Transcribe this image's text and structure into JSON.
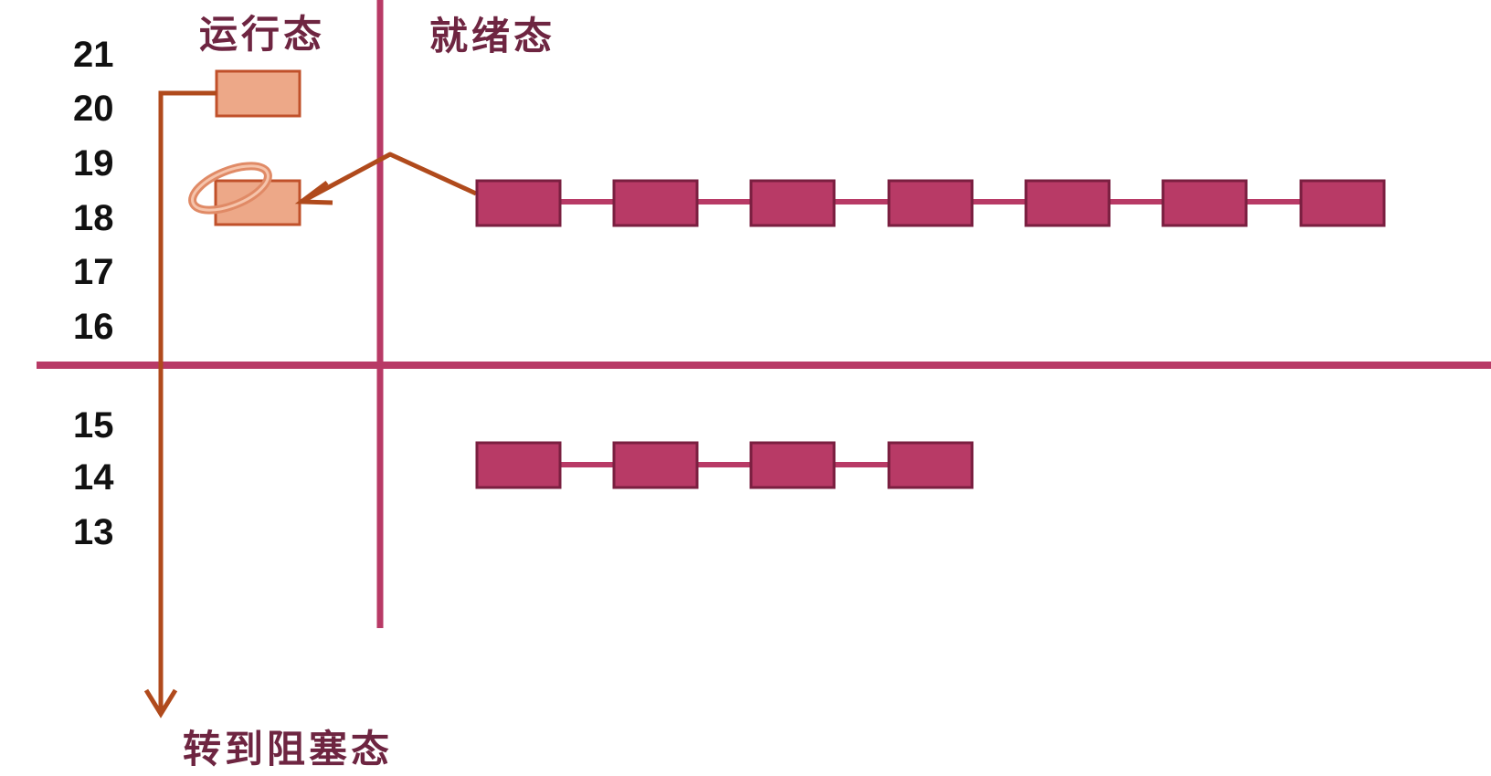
{
  "headings": {
    "running": "运行态",
    "ready": "就绪态",
    "to_blocked": "转到阻塞态"
  },
  "priority_levels": [
    "21",
    "20",
    "19",
    "18",
    "17",
    "16",
    "15",
    "14",
    "13"
  ],
  "running_processes": [
    {
      "priority": "20",
      "state": "leaving-to-blocked"
    },
    {
      "priority": "18",
      "state": "scheduled-in",
      "halo": true
    }
  ],
  "ready_queues": [
    {
      "priority": "18",
      "process_count": 7
    },
    {
      "priority": "14",
      "process_count": 4
    }
  ],
  "colors": {
    "divider": "#b83a66",
    "ready_process_fill": "#b83a66",
    "ready_process_stroke": "#7a1f40",
    "running_process_fill": "#eda888",
    "running_process_stroke": "#c0502a",
    "arrow": "#b04a1c",
    "heading_text": "#6e2541"
  }
}
